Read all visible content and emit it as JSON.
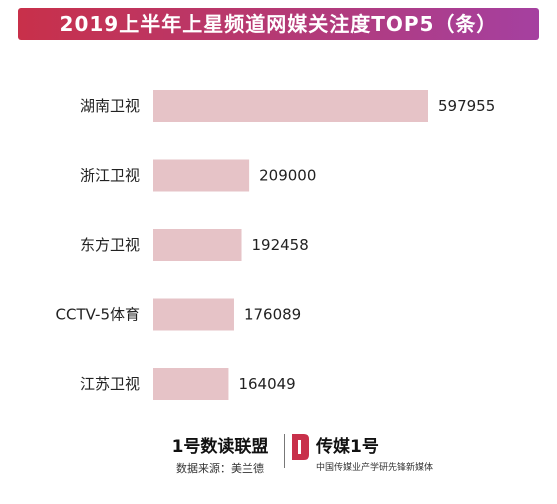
{
  "chart_data": {
    "type": "bar",
    "orientation": "horizontal",
    "title": "2019上半年上星频道网媒关注度TOP5（条）",
    "categories": [
      "湖南卫视",
      "浙江卫视",
      "东方卫视",
      "CCTV-5体育",
      "江苏卫视"
    ],
    "values": [
      597955,
      209000,
      192458,
      176089,
      164049
    ],
    "xlim": [
      0,
      597955
    ],
    "grid": false,
    "legend": "none",
    "bar_color": "#e6c3c7"
  },
  "footer": {
    "brand_left": "1号数读联盟",
    "source": "数据来源：美兰德",
    "brand_right": "传媒1号",
    "slogan": "中国传媒业产学研先锋新媒体"
  },
  "colors": {
    "banner_start": "#c8304a",
    "banner_end": "#a540a0",
    "logo_red": "#c8304a"
  }
}
